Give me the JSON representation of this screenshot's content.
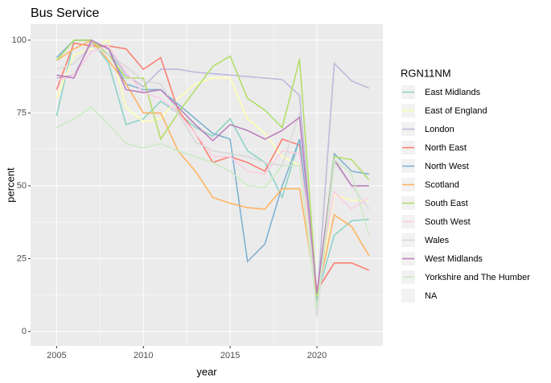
{
  "chart_data": {
    "type": "line",
    "title": "Bus Service",
    "x_label": "year",
    "y_label": "percent",
    "legend_title": "RGN11NM",
    "x": [
      2005,
      2006,
      2007,
      2008,
      2009,
      2010,
      2011,
      2012,
      2013,
      2014,
      2015,
      2016,
      2017,
      2018,
      2019,
      2020,
      2021,
      2022,
      2023
    ],
    "xlim": [
      2003.5,
      2023.8
    ],
    "xticks": [
      2005,
      2010,
      2015,
      2020
    ],
    "ylim": [
      -5,
      105.5
    ],
    "yticks": [
      0,
      25,
      50,
      75,
      100
    ],
    "grid": true,
    "series": [
      {
        "name": "East Midlands",
        "color": "#8DD3C7",
        "values": [
          74,
          100,
          100,
          92,
          71,
          73,
          79,
          75,
          70,
          67,
          73,
          62,
          58,
          46,
          66,
          12,
          33,
          38,
          38.5
        ]
      },
      {
        "name": "East of England",
        "color": "#FFFFB3",
        "values": [
          80,
          95,
          97,
          100,
          77,
          72,
          73,
          80,
          85,
          87,
          87,
          73,
          68,
          60,
          57,
          10,
          47,
          45,
          45
        ]
      },
      {
        "name": "London",
        "color": "#BEBADA",
        "values": [
          87,
          88,
          99,
          97,
          88,
          84,
          90,
          90,
          89,
          88.5,
          88,
          87.5,
          87,
          86.5,
          81,
          10,
          92,
          86,
          83.5
        ]
      },
      {
        "name": "North East",
        "color": "#FB8072",
        "values": [
          83,
          99,
          98,
          98,
          97,
          90,
          94,
          76,
          68,
          58,
          60,
          58,
          55,
          66,
          64,
          14,
          23.5,
          23.5,
          21
        ]
      },
      {
        "name": "North West",
        "color": "#80B1D3",
        "values": [
          94,
          100,
          100,
          97,
          85,
          83,
          83,
          78,
          73,
          68,
          66,
          24,
          30,
          50,
          66,
          10,
          61,
          55,
          54
        ]
      },
      {
        "name": "Scotland",
        "color": "#FDB462",
        "values": [
          93,
          97,
          100,
          93,
          85,
          75,
          75,
          62,
          55,
          46,
          44,
          42.5,
          42,
          49,
          49,
          12,
          40,
          36,
          26
        ]
      },
      {
        "name": "South East",
        "color": "#B3DE69",
        "values": [
          93,
          100,
          100,
          95,
          87,
          87,
          66,
          75,
          83,
          91,
          94.5,
          80,
          76,
          70,
          93.5,
          12,
          60,
          59,
          52
        ]
      },
      {
        "name": "South West",
        "color": "#FCCDE5",
        "values": [
          86,
          88,
          96,
          98,
          89,
          82,
          80,
          75,
          68,
          60,
          60,
          55,
          54,
          62,
          61,
          14,
          48,
          42,
          46
        ]
      },
      {
        "name": "Wales",
        "color": "#D9D9D9",
        "values": [
          90,
          92,
          98,
          95,
          91,
          86,
          85,
          75,
          65,
          62,
          61,
          60,
          58,
          57,
          75,
          5,
          58,
          50,
          42
        ]
      },
      {
        "name": "West Midlands",
        "color": "#BC80BD",
        "values": [
          88,
          87,
          100,
          97,
          83,
          82,
          83,
          77,
          71,
          65.5,
          71,
          69,
          66,
          69,
          73.5,
          13,
          59,
          50,
          50
        ]
      },
      {
        "name": "Yorkshire and The Humber",
        "color": "#CCEBC5",
        "values": [
          70,
          73,
          77,
          71,
          64.5,
          63,
          64.5,
          62,
          60,
          58,
          55,
          50,
          49.5,
          57,
          57,
          8,
          59,
          54,
          33
        ]
      },
      {
        "name": "NA",
        "color": "#7F7F7F",
        "values": [
          null,
          null,
          null,
          null,
          null,
          null,
          null,
          null,
          null,
          null,
          null,
          null,
          null,
          null,
          null,
          null,
          null,
          null,
          null
        ]
      }
    ]
  }
}
